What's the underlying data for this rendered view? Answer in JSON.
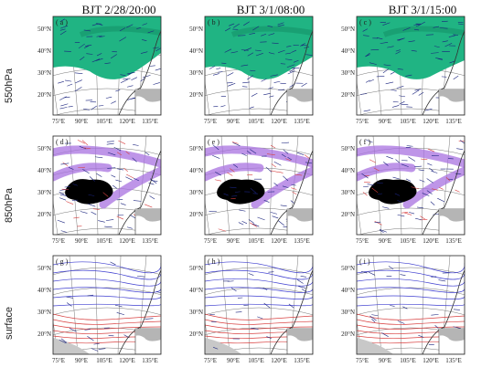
{
  "columns": [
    {
      "title": "BJT 2/28/20:00"
    },
    {
      "title": "BJT 3/1/08:00"
    },
    {
      "title": "BJT 3/1/15:00"
    }
  ],
  "rows": [
    {
      "label": "550hPa"
    },
    {
      "label": "850hPa"
    },
    {
      "label": "surface"
    }
  ],
  "panels": [
    {
      "letter": "( a )"
    },
    {
      "letter": "( b )"
    },
    {
      "letter": "( c )"
    },
    {
      "letter": "( d )"
    },
    {
      "letter": "( e )"
    },
    {
      "letter": "( f )"
    },
    {
      "letter": "( g )"
    },
    {
      "letter": "( h )"
    },
    {
      "letter": "( i )"
    }
  ],
  "lat_ticks": [
    "50°N",
    "40°N",
    "30°N",
    "20°N"
  ],
  "lon_ticks": [
    "75°E",
    "90°E",
    "105°E",
    "120°E",
    "135°E"
  ],
  "colors": {
    "humidity_fill": "#20b483",
    "humidity_shade": "#0e7a57",
    "convergence_fill": "#a872e0",
    "plateau": "#000000",
    "inset_land": "#b5b5b5",
    "wind_vector": "#1a237e",
    "contour_blue": "#3f3fd0",
    "contour_red": "#d84040",
    "coast": "#333333"
  }
}
